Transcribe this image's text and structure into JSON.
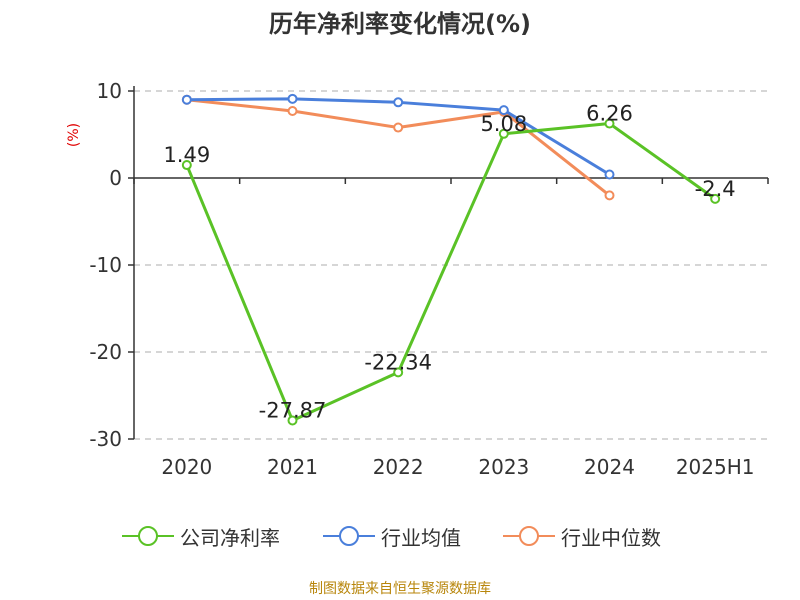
{
  "chart_data": {
    "type": "line",
    "title": "历年净利率变化情况(%)",
    "ylabel": "(%)",
    "ylim": [
      -30,
      10
    ],
    "yticks": [
      10,
      0,
      -10,
      -20,
      -30
    ],
    "categories": [
      "2020",
      "2021",
      "2022",
      "2023",
      "2024",
      "2025H1"
    ],
    "grid": true,
    "legend_position": "bottom",
    "series": [
      {
        "name": "公司净利率",
        "color": "#5ac226",
        "values": [
          1.49,
          -27.87,
          -22.34,
          5.08,
          6.26,
          -2.4
        ],
        "labels": [
          "1.49",
          "-27.87",
          "-22.34",
          "5.08",
          "6.26",
          "-2.4"
        ]
      },
      {
        "name": "行业均值",
        "color": "#4a7fdb",
        "values": [
          9.0,
          9.1,
          8.7,
          7.8,
          0.4,
          null
        ]
      },
      {
        "name": "行业中位数",
        "color": "#f28c5a",
        "values": [
          9.0,
          7.7,
          5.8,
          7.6,
          -2.0,
          null
        ]
      }
    ]
  },
  "source": "制图数据来自恒生聚源数据库"
}
